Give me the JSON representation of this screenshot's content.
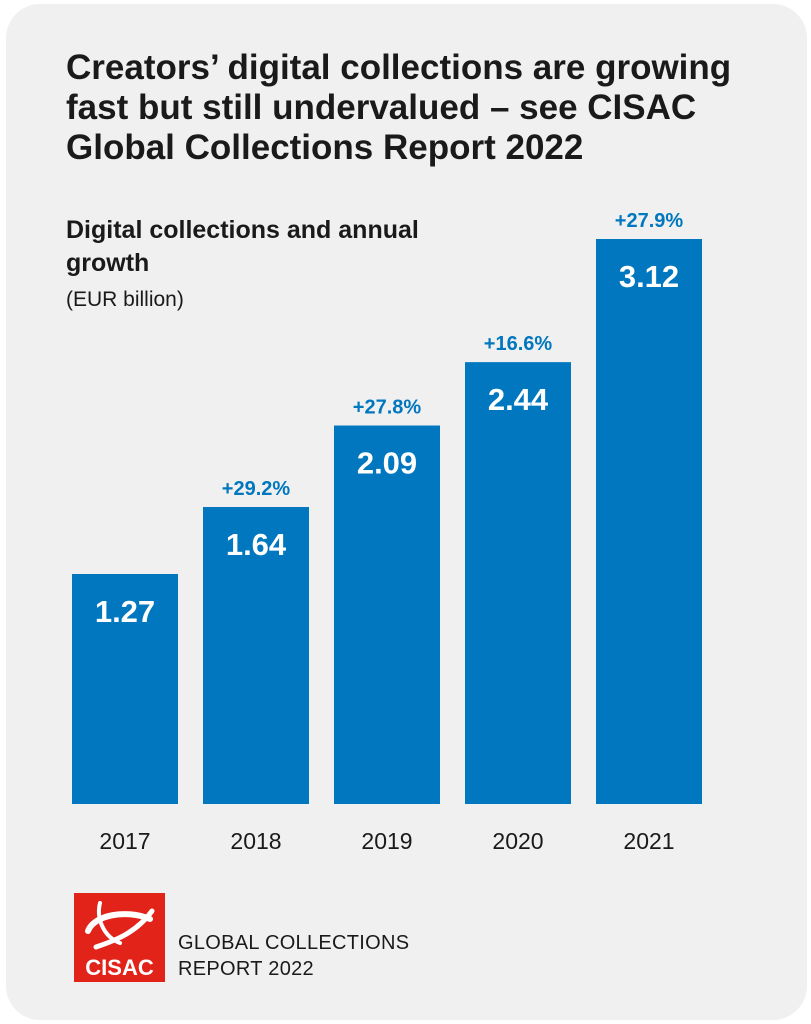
{
  "header": {
    "title": "Creators’ digital collections are growing fast but still undervalued – see CISAC Global Collections Report 2022"
  },
  "chart_data": {
    "type": "bar",
    "title": "Digital collections and annual growth",
    "unit": "(EUR billion)",
    "categories": [
      "2017",
      "2018",
      "2019",
      "2020",
      "2021"
    ],
    "values": [
      1.27,
      1.64,
      2.09,
      2.44,
      3.12
    ],
    "value_labels": [
      "1.27",
      "1.64",
      "2.09",
      "2.44",
      "3.12"
    ],
    "growth_labels": [
      "",
      "+29.2%",
      "+27.8%",
      "+16.6%",
      "+27.9%"
    ],
    "ylim": [
      0,
      3.12
    ],
    "grid": false,
    "bar_color": "#0077be",
    "growth_color": "#0077be",
    "value_label_color": "#ffffff"
  },
  "logo": {
    "text": "CISAC",
    "color": "#e2231a"
  },
  "footer": {
    "line1": "GLOBAL COLLECTIONS",
    "line2": "REPORT 2022"
  }
}
